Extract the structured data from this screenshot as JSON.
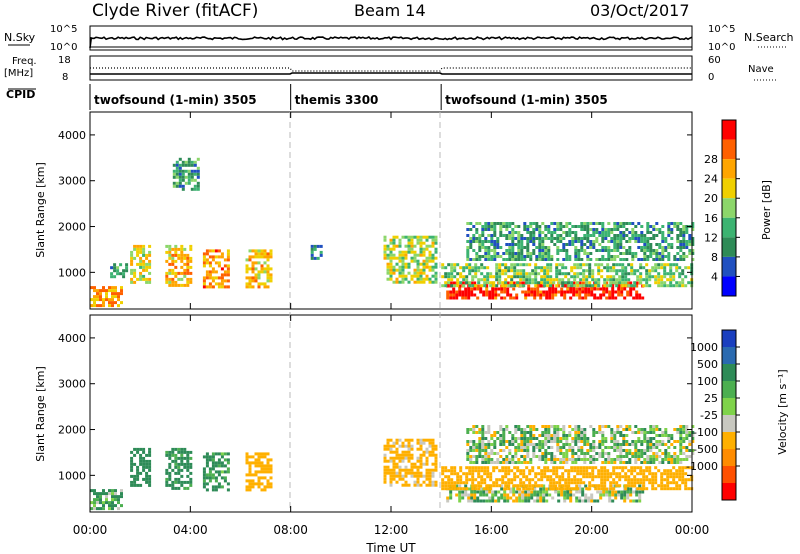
{
  "header": {
    "station": "Clyde River (fitACF)",
    "beam": "Beam 14",
    "date": "03/Oct/2017"
  },
  "top_panels": {
    "nsky_label": "N.Sky",
    "nsearch_label": "N.Search",
    "nsky_ticks": [
      "10^5",
      "10^0"
    ],
    "nsearch_ticks": [
      "10^5",
      "10^0"
    ],
    "freq_label": "Freq.",
    "freq_unit": "[MHz]",
    "freq_ticks": [
      "18",
      "8"
    ],
    "nave_label": "Nave",
    "nave_ticks": [
      "60",
      "0"
    ],
    "cpid_label": "CPID"
  },
  "cpid_segments": [
    {
      "label": "twofsound (1-min) 3505",
      "start_hour": 0,
      "end_hour": 8
    },
    {
      "label": "themis 3300",
      "start_hour": 8,
      "end_hour": 14
    },
    {
      "label": "twofsound (1-min) 3505",
      "start_hour": 14,
      "end_hour": 24
    }
  ],
  "axes": {
    "ylabel": "Slant Range [km]",
    "yticks": [
      "1000",
      "2000",
      "3000",
      "4000"
    ],
    "xlabel": "Time UT",
    "xticks": [
      "00:00",
      "04:00",
      "08:00",
      "12:00",
      "16:00",
      "20:00",
      "00:00"
    ]
  },
  "power_colorbar": {
    "label": "Power [dB]",
    "ticks": [
      "4",
      "8",
      "12",
      "16",
      "20",
      "24",
      "28"
    ],
    "colors": [
      "#0000ff",
      "#2050c0",
      "#2e8b57",
      "#3cb371",
      "#8cd66a",
      "#f0d000",
      "#ffa500",
      "#ff6000",
      "#ff0000"
    ]
  },
  "velocity_colorbar": {
    "label": "Velocity [m s⁻¹]",
    "ticks": [
      "1000",
      "500",
      "100",
      "25",
      "-25",
      "-100",
      "-500",
      "-1000"
    ],
    "colors": [
      "#1a3fbf",
      "#2a6ab0",
      "#2e8b57",
      "#4caf50",
      "#7fd34a",
      "#c8c8c0",
      "#ffb000",
      "#ff8c00",
      "#ff5000",
      "#ff0000"
    ]
  },
  "chart_data": [
    {
      "type": "heatmap",
      "name": "power",
      "xlim": [
        0,
        24
      ],
      "ylim": [
        200,
        4500
      ],
      "colorbar_range": [
        0,
        30
      ],
      "regions": [
        {
          "t0": 0.0,
          "t1": 1.2,
          "r0": 250,
          "r1": 700,
          "value": 22
        },
        {
          "t0": 0.8,
          "t1": 1.4,
          "r0": 900,
          "r1": 1200,
          "value": 10
        },
        {
          "t0": 1.6,
          "t1": 2.4,
          "r0": 800,
          "r1": 1600,
          "value": 18
        },
        {
          "t0": 3.0,
          "t1": 4.0,
          "r0": 700,
          "r1": 1600,
          "value": 20
        },
        {
          "t0": 4.5,
          "t1": 5.5,
          "r0": 700,
          "r1": 1500,
          "value": 22
        },
        {
          "t0": 6.2,
          "t1": 7.2,
          "r0": 700,
          "r1": 1500,
          "value": 20
        },
        {
          "t0": 3.3,
          "t1": 4.3,
          "r0": 2800,
          "r1": 3500,
          "value": 10
        },
        {
          "t0": 8.8,
          "t1": 9.2,
          "r0": 1300,
          "r1": 1600,
          "value": 8
        },
        {
          "t0": 11.7,
          "t1": 13.8,
          "r0": 800,
          "r1": 1800,
          "value": 16
        },
        {
          "t0": 14.2,
          "t1": 22.0,
          "r0": 450,
          "r1": 800,
          "value": 28
        },
        {
          "t0": 14.0,
          "t1": 24.0,
          "r0": 700,
          "r1": 1200,
          "value": 14
        },
        {
          "t0": 15.0,
          "t1": 24.0,
          "r0": 1300,
          "r1": 2100,
          "value": 10
        }
      ]
    },
    {
      "type": "heatmap",
      "name": "velocity",
      "xlim": [
        0,
        24
      ],
      "ylim": [
        200,
        4500
      ],
      "colorbar_range": [
        -1000,
        1000
      ],
      "regions": [
        {
          "t0": 0.0,
          "t1": 1.2,
          "r0": 250,
          "r1": 700,
          "value": 100
        },
        {
          "t0": 1.6,
          "t1": 2.4,
          "r0": 800,
          "r1": 1600,
          "value": 300
        },
        {
          "t0": 3.0,
          "t1": 4.0,
          "r0": 700,
          "r1": 1600,
          "value": 200
        },
        {
          "t0": 4.5,
          "t1": 5.5,
          "r0": 700,
          "r1": 1500,
          "value": 150
        },
        {
          "t0": 6.2,
          "t1": 7.2,
          "r0": 700,
          "r1": 1500,
          "value": -300
        },
        {
          "t0": 11.7,
          "t1": 13.8,
          "r0": 800,
          "r1": 1800,
          "value": -200
        },
        {
          "t0": 14.2,
          "t1": 22.0,
          "r0": 450,
          "r1": 800,
          "value": 0
        },
        {
          "t0": 14.0,
          "t1": 24.0,
          "r0": 700,
          "r1": 1200,
          "value": -300
        },
        {
          "t0": 15.0,
          "t1": 24.0,
          "r0": 1300,
          "r1": 2100,
          "value": 0
        }
      ]
    }
  ]
}
